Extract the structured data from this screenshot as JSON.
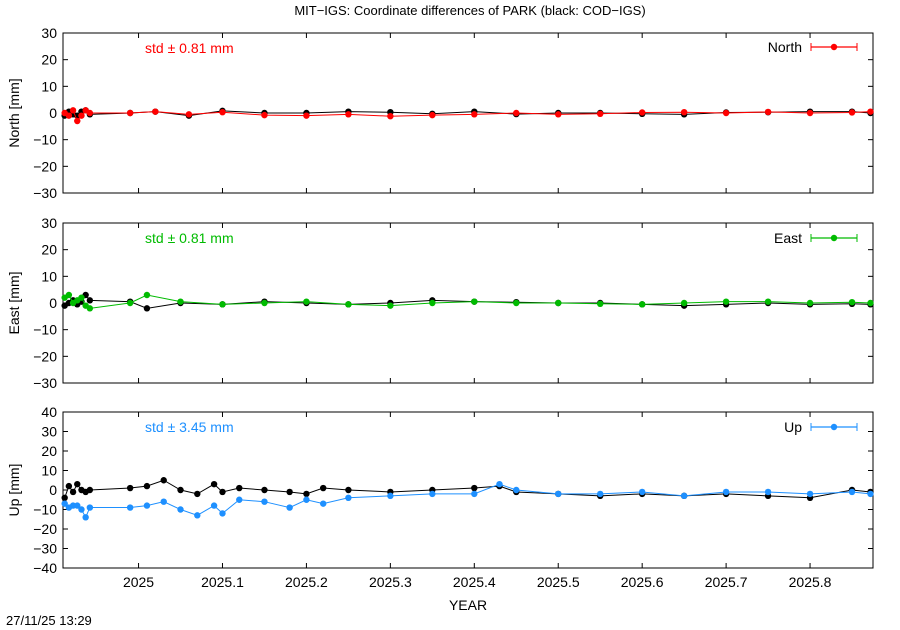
{
  "title": "MIT−IGS: Coordinate differences of PARK (black: COD−IGS)",
  "timestamp": "27/11/25 13:29",
  "xlabel": "YEAR",
  "chart_data": [
    {
      "type": "line",
      "ylabel": "North [mm]",
      "ylim": [
        -30,
        30
      ],
      "yticks": [
        30,
        20,
        10,
        0,
        -10,
        -20,
        -30
      ],
      "xlim": [
        2024.91,
        2025.875
      ],
      "xticks": [
        "2025",
        "2025.1",
        "2025.2",
        "2025.3",
        "2025.4",
        "2025.5",
        "2025.6",
        "2025.7",
        "2025.8"
      ],
      "std_label": "std ± 0.81 mm",
      "legend": "North",
      "legend_position": "top-right",
      "grid": false,
      "series": [
        {
          "name": "North",
          "color": "#ff0000",
          "x": [
            2024.912,
            2024.917,
            2024.922,
            2024.927,
            2024.932,
            2024.937,
            2024.942,
            2024.99,
            2025.02,
            2025.06,
            2025.1,
            2025.15,
            2025.2,
            2025.25,
            2025.3,
            2025.35,
            2025.4,
            2025.45,
            2025.5,
            2025.55,
            2025.6,
            2025.65,
            2025.7,
            2025.75,
            2025.8,
            2025.85,
            2025.872
          ],
          "y": [
            0,
            -1,
            1,
            -3,
            -1,
            1,
            0,
            0,
            0.5,
            -0.5,
            0.3,
            -0.8,
            -1,
            -0.5,
            -1.2,
            -0.8,
            -0.5,
            0,
            -0.5,
            -0.3,
            0.2,
            0.3,
            0,
            0.4,
            0,
            0.2,
            0.5
          ]
        },
        {
          "name": "COD",
          "color": "#000000",
          "x": [
            2024.912,
            2024.917,
            2024.922,
            2024.927,
            2024.932,
            2024.937,
            2024.942,
            2024.99,
            2025.02,
            2025.06,
            2025.1,
            2025.15,
            2025.2,
            2025.25,
            2025.3,
            2025.35,
            2025.4,
            2025.45,
            2025.5,
            2025.55,
            2025.6,
            2025.65,
            2025.7,
            2025.75,
            2025.8,
            2025.85,
            2025.872
          ],
          "y": [
            -1,
            0.5,
            -0.5,
            -1,
            0.5,
            1,
            -0.5,
            0,
            0.5,
            -1,
            0.8,
            0,
            0,
            0.5,
            0.3,
            -0.3,
            0.5,
            -0.4,
            0,
            0,
            -0.3,
            -0.5,
            0.2,
            0.3,
            0.5,
            0.5,
            0
          ]
        }
      ]
    },
    {
      "type": "line",
      "ylabel": "East [mm]",
      "ylim": [
        -30,
        30
      ],
      "yticks": [
        30,
        20,
        10,
        0,
        -10,
        -20,
        -30
      ],
      "xlim": [
        2024.91,
        2025.875
      ],
      "xticks": [
        "2025",
        "2025.1",
        "2025.2",
        "2025.3",
        "2025.4",
        "2025.5",
        "2025.6",
        "2025.7",
        "2025.8"
      ],
      "std_label": "std ± 0.81 mm",
      "legend": "East",
      "legend_position": "top-right",
      "grid": false,
      "series": [
        {
          "name": "East",
          "color": "#00bb00",
          "x": [
            2024.912,
            2024.917,
            2024.922,
            2024.927,
            2024.932,
            2024.937,
            2024.942,
            2024.99,
            2025.01,
            2025.05,
            2025.1,
            2025.15,
            2025.2,
            2025.25,
            2025.3,
            2025.35,
            2025.4,
            2025.45,
            2025.5,
            2025.55,
            2025.6,
            2025.65,
            2025.7,
            2025.75,
            2025.8,
            2025.85,
            2025.872
          ],
          "y": [
            2,
            3,
            0,
            1,
            2,
            -1,
            -2,
            0,
            3,
            0.5,
            -0.5,
            0,
            0.5,
            -0.5,
            -1,
            0,
            0.5,
            0,
            0,
            -0.3,
            -0.5,
            0,
            0.5,
            0.5,
            0,
            0.3,
            0
          ]
        },
        {
          "name": "COD",
          "color": "#000000",
          "x": [
            2024.912,
            2024.917,
            2024.922,
            2024.927,
            2024.932,
            2024.937,
            2024.942,
            2024.99,
            2025.01,
            2025.05,
            2025.1,
            2025.15,
            2025.2,
            2025.25,
            2025.3,
            2025.35,
            2025.4,
            2025.45,
            2025.5,
            2025.55,
            2025.6,
            2025.65,
            2025.7,
            2025.75,
            2025.8,
            2025.85,
            2025.872
          ],
          "y": [
            -1,
            0,
            1,
            -0.5,
            0.5,
            3,
            1,
            0.5,
            -2,
            0,
            -0.5,
            0.5,
            0,
            -0.5,
            0,
            1,
            0.5,
            0.3,
            0,
            0,
            -0.5,
            -1,
            -0.5,
            0,
            -0.5,
            -0.3,
            -0.5
          ]
        }
      ]
    },
    {
      "type": "line",
      "ylabel": "Up [mm]",
      "ylim": [
        -40,
        40
      ],
      "yticks": [
        40,
        30,
        20,
        10,
        0,
        -10,
        -20,
        -30,
        -40
      ],
      "xlim": [
        2024.91,
        2025.875
      ],
      "xticks": [
        "2025",
        "2025.1",
        "2025.2",
        "2025.3",
        "2025.4",
        "2025.5",
        "2025.6",
        "2025.7",
        "2025.8"
      ],
      "std_label": "std ± 3.45 mm",
      "legend": "Up",
      "legend_position": "top-right",
      "grid": false,
      "series": [
        {
          "name": "Up",
          "color": "#1e90ff",
          "x": [
            2024.912,
            2024.917,
            2024.922,
            2024.927,
            2024.932,
            2024.937,
            2024.942,
            2024.99,
            2025.01,
            2025.03,
            2025.05,
            2025.07,
            2025.09,
            2025.1,
            2025.12,
            2025.15,
            2025.18,
            2025.2,
            2025.22,
            2025.25,
            2025.3,
            2025.35,
            2025.4,
            2025.43,
            2025.45,
            2025.5,
            2025.55,
            2025.6,
            2025.65,
            2025.7,
            2025.75,
            2025.8,
            2025.85,
            2025.872
          ],
          "y": [
            -7,
            -9,
            -8,
            -8,
            -10,
            -14,
            -9,
            -9,
            -8,
            -6,
            -10,
            -13,
            -8,
            -12,
            -5,
            -6,
            -9,
            -5,
            -7,
            -4,
            -3,
            -2,
            -2,
            3,
            0,
            -2,
            -2,
            -1,
            -3,
            -1,
            -1,
            -2,
            -1,
            -2
          ]
        },
        {
          "name": "COD",
          "color": "#000000",
          "x": [
            2024.912,
            2024.917,
            2024.922,
            2024.927,
            2024.932,
            2024.937,
            2024.942,
            2024.99,
            2025.01,
            2025.03,
            2025.05,
            2025.07,
            2025.09,
            2025.1,
            2025.12,
            2025.15,
            2025.18,
            2025.2,
            2025.22,
            2025.25,
            2025.3,
            2025.35,
            2025.4,
            2025.43,
            2025.45,
            2025.5,
            2025.55,
            2025.6,
            2025.65,
            2025.7,
            2025.75,
            2025.8,
            2025.85,
            2025.872
          ],
          "y": [
            -4,
            2,
            -1,
            3,
            0,
            -1,
            0,
            1,
            2,
            5,
            0,
            -2,
            3,
            -1,
            1,
            0,
            -1,
            -2,
            1,
            0,
            -1,
            0,
            1,
            2,
            -1,
            -2,
            -3,
            -2,
            -3,
            -2,
            -3,
            -4,
            0,
            -1
          ]
        }
      ]
    }
  ]
}
